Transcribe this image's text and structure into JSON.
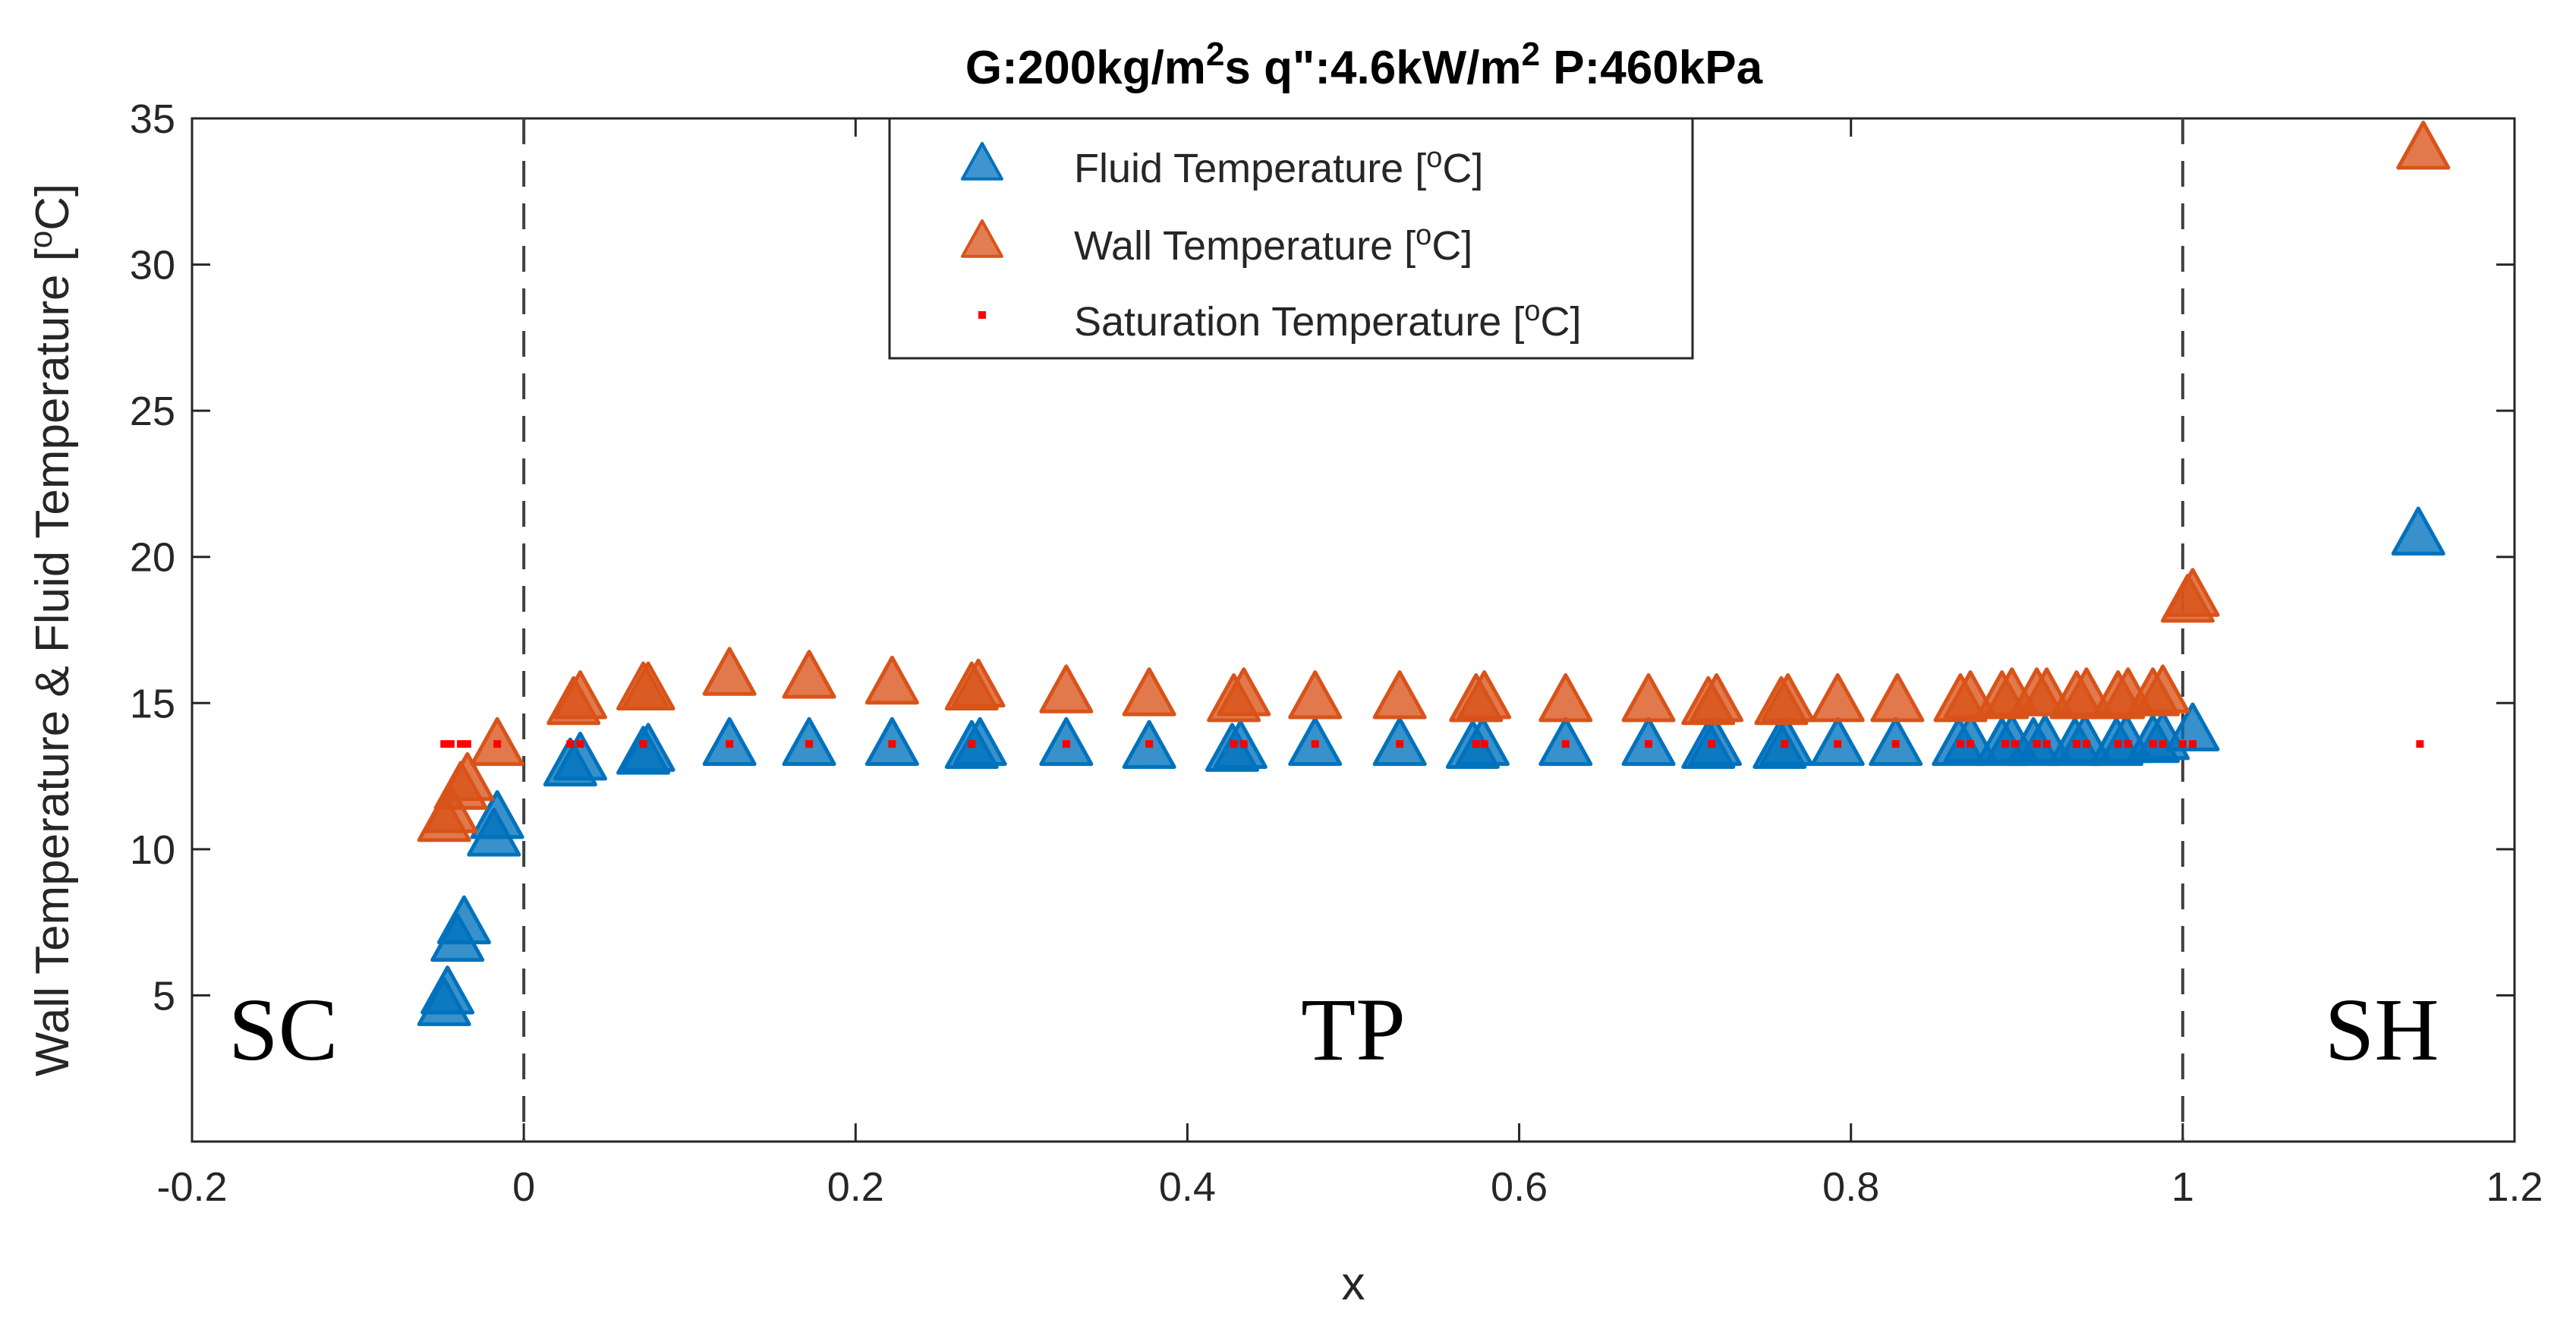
{
  "chart_data": {
    "type": "scatter",
    "title": "G:200kg/m²s q\":4.6kW/m² P:460kPa",
    "title_parts": {
      "part1": "G:200kg/m",
      "sup1": "2",
      "part2": "s q\":4.6kW/m",
      "sup2": "2",
      "part3": " P:460kPa"
    },
    "xlabel": "x",
    "ylabel": "Wall Temperature & Fluid Temperature [°C]",
    "ylabel_parts": {
      "pre": "Wall Temperature & Fluid Temperature [",
      "sup": "o",
      "post": "C]"
    },
    "xlim": [
      -0.2,
      1.2
    ],
    "ylim": [
      0,
      35
    ],
    "x_ticks": [
      -0.2,
      0,
      0.2,
      0.4,
      0.6,
      0.8,
      1,
      1.2
    ],
    "x_tick_labels": [
      "-0.2",
      "0",
      "0.2",
      "0.4",
      "0.6",
      "0.8",
      "1",
      "1.2"
    ],
    "y_ticks": [
      5,
      10,
      15,
      20,
      25,
      30,
      35
    ],
    "y_tick_labels": [
      "5",
      "10",
      "15",
      "20",
      "25",
      "30",
      "35"
    ],
    "vertical_lines": [
      0,
      1
    ],
    "regions": [
      {
        "label": "SC",
        "x": -0.145,
        "y": 2.8
      },
      {
        "label": "TP",
        "x": 0.5,
        "y": 2.8
      },
      {
        "label": "SH",
        "x": 1.12,
        "y": 2.8
      }
    ],
    "legend": {
      "position": "top-center",
      "entries": [
        {
          "pre": "Fluid Temperature [",
          "sup": "o",
          "post": "C]",
          "color": "#0072BD",
          "marker": "triangle"
        },
        {
          "pre": "Wall Temperature [",
          "sup": "o",
          "post": "C]",
          "color": "#D95319",
          "marker": "triangle"
        },
        {
          "pre": "Saturation Temperature [",
          "sup": "o",
          "post": "C]",
          "color": "#FF0000",
          "marker": "dot"
        }
      ]
    },
    "series": [
      {
        "name": "Fluid Temperature [°C]",
        "color": "#0072BD",
        "marker": "triangle",
        "x": [
          -0.048,
          -0.046,
          -0.04,
          -0.036,
          -0.018,
          -0.016,
          0.028,
          0.034,
          0.072,
          0.075,
          0.124,
          0.172,
          0.222,
          0.27,
          0.275,
          0.327,
          0.377,
          0.427,
          0.432,
          0.477,
          0.528,
          0.572,
          0.578,
          0.628,
          0.678,
          0.714,
          0.718,
          0.757,
          0.761,
          0.792,
          0.827,
          0.865,
          0.872,
          0.891,
          0.897,
          0.91,
          0.917,
          0.935,
          0.941,
          0.96,
          0.966,
          0.982,
          0.988,
          1.006,
          1.142
        ],
        "y": [
          4.6,
          5.0,
          6.8,
          7.4,
          10.4,
          11.0,
          12.8,
          13.0,
          13.2,
          13.3,
          13.5,
          13.5,
          13.5,
          13.4,
          13.5,
          13.5,
          13.4,
          13.3,
          13.4,
          13.5,
          13.5,
          13.4,
          13.5,
          13.5,
          13.5,
          13.4,
          13.5,
          13.4,
          13.5,
          13.5,
          13.5,
          13.5,
          13.6,
          13.5,
          13.6,
          13.5,
          13.6,
          13.5,
          13.6,
          13.5,
          13.6,
          13.6,
          13.7,
          14.0,
          20.7
        ]
      },
      {
        "name": "Wall Temperature [°C]",
        "color": "#D95319",
        "marker": "triangle",
        "x": [
          -0.048,
          -0.044,
          -0.038,
          -0.034,
          -0.016,
          0.03,
          0.034,
          0.072,
          0.075,
          0.124,
          0.172,
          0.222,
          0.27,
          0.274,
          0.327,
          0.377,
          0.428,
          0.434,
          0.477,
          0.528,
          0.574,
          0.579,
          0.628,
          0.678,
          0.714,
          0.719,
          0.758,
          0.762,
          0.792,
          0.828,
          0.866,
          0.872,
          0.891,
          0.897,
          0.912,
          0.918,
          0.936,
          0.942,
          0.961,
          0.967,
          0.982,
          0.988,
          1.003,
          1.006,
          1.145
        ],
        "y": [
          10.9,
          11.2,
          12.0,
          12.3,
          13.5,
          14.9,
          15.1,
          15.4,
          15.4,
          15.9,
          15.8,
          15.6,
          15.4,
          15.5,
          15.3,
          15.2,
          15.0,
          15.2,
          15.1,
          15.1,
          15.0,
          15.1,
          15.0,
          15.0,
          14.9,
          15.0,
          14.9,
          15.0,
          15.0,
          15.0,
          15.0,
          15.1,
          15.1,
          15.2,
          15.2,
          15.2,
          15.1,
          15.2,
          15.1,
          15.2,
          15.2,
          15.3,
          18.4,
          18.6,
          33.9
        ]
      },
      {
        "name": "Saturation Temperature [°C]",
        "color": "#FF0000",
        "marker": "dot",
        "x": [
          -0.048,
          -0.044,
          -0.038,
          -0.034,
          -0.016,
          0.028,
          0.034,
          0.072,
          0.124,
          0.172,
          0.222,
          0.27,
          0.327,
          0.377,
          0.428,
          0.434,
          0.477,
          0.528,
          0.574,
          0.579,
          0.628,
          0.678,
          0.716,
          0.76,
          0.792,
          0.827,
          0.866,
          0.872,
          0.893,
          0.899,
          0.912,
          0.918,
          0.936,
          0.942,
          0.961,
          0.967,
          0.982,
          0.988,
          1.0,
          1.006,
          1.143
        ],
        "y": [
          13.6,
          13.6,
          13.6,
          13.6,
          13.6,
          13.6,
          13.6,
          13.6,
          13.6,
          13.6,
          13.6,
          13.6,
          13.6,
          13.6,
          13.6,
          13.6,
          13.6,
          13.6,
          13.6,
          13.6,
          13.6,
          13.6,
          13.6,
          13.6,
          13.6,
          13.6,
          13.6,
          13.6,
          13.6,
          13.6,
          13.6,
          13.6,
          13.6,
          13.6,
          13.6,
          13.6,
          13.6,
          13.6,
          13.6,
          13.6,
          13.6
        ]
      }
    ]
  }
}
